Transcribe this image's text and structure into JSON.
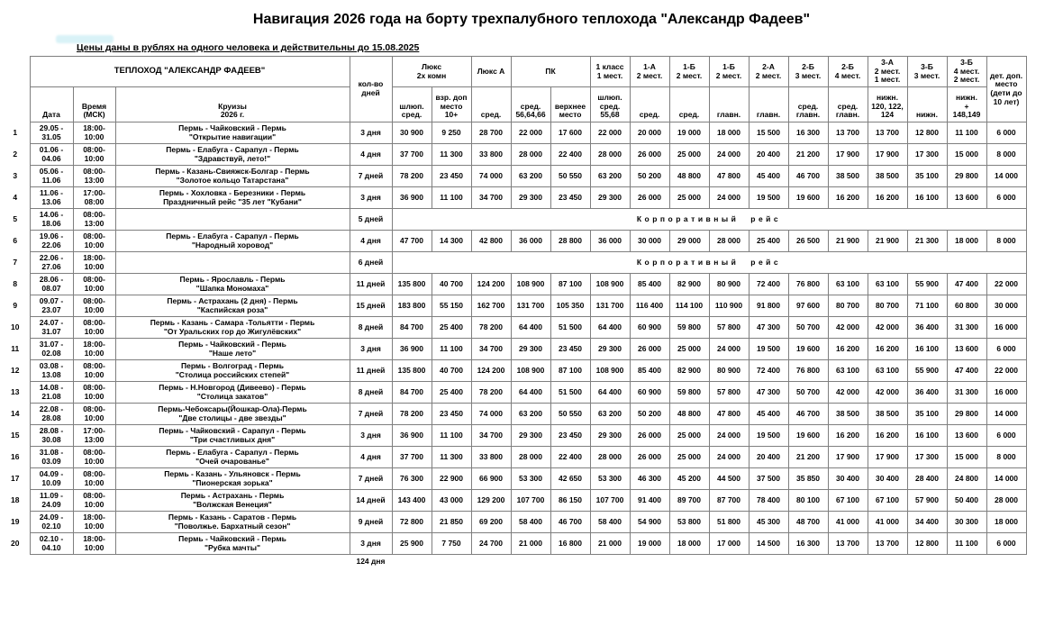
{
  "title": "Навигация 2026 года на борту трехпалубного теплохода \"Александр Фадеев\"",
  "subtitle": "Цены даны в рублях на одного человека и действительны до 15.08.2025",
  "footer_total": "124 дня",
  "table": {
    "ship_header": "ТЕПЛОХОД \"АЛЕКСАНДР ФАДЕЕВ\"",
    "col_date": "Дата",
    "col_time": "Время\n(МСК)",
    "col_cruise": "Круизы\n2026 г.",
    "col_days": "кол-во\nдней",
    "children_col_label": "дет. доп.\nместо\n(дети до\n10 лет)",
    "groups": [
      {
        "label": "Люкс\n2х комн",
        "subs": [
          "шлюп.\nсред.",
          "взр. доп\nместо\n10+"
        ]
      },
      {
        "label": "Люкс А",
        "subs": [
          "сред."
        ]
      },
      {
        "label": "ПК",
        "subs": [
          "сред.\n56,64,66",
          "верхнее\nместо"
        ]
      },
      {
        "label": "1 класс\n1 мест.",
        "subs": [
          "шлюп.\nсред.\n55,68"
        ]
      },
      {
        "label": "1-А\n2 мест.",
        "subs": [
          "сред."
        ]
      },
      {
        "label": "1-Б\n2 мест.",
        "subs": [
          "сред."
        ]
      },
      {
        "label": "1-Б\n2 мест.",
        "subs": [
          "главн."
        ]
      },
      {
        "label": "2-А\n2 мест.",
        "subs": [
          "главн."
        ]
      },
      {
        "label": "2-Б\n3 мест.",
        "subs": [
          "сред.\nглавн."
        ]
      },
      {
        "label": "2-Б\n4 мест.",
        "subs": [
          "сред.\nглавн."
        ]
      },
      {
        "label": "3-А\n2 мест.\n1 мест.",
        "subs": [
          "нижн.\n120, 122,\n124"
        ]
      },
      {
        "label": "3-Б\n3 мест.",
        "subs": [
          "нижн."
        ]
      },
      {
        "label": "3-Б\n4 мест.\n2 мест.",
        "subs": [
          "нижн.\n+\n148,149"
        ]
      }
    ],
    "corporate_label": "Корпоративный рейс",
    "rows": [
      {
        "n": "1",
        "dates": "29.05 -\n31.05",
        "time": "18:00-\n10:00",
        "cruise": "Пермь - Чайковский - Пермь\n\"Открытие навигации\"",
        "days": "3 дня",
        "prices": [
          "30 900",
          "9 250",
          "28 700",
          "22 000",
          "17 600",
          "22 000",
          "20 000",
          "19 000",
          "18 000",
          "15 500",
          "16 300",
          "13 700",
          "13 700",
          "12 800",
          "11 100",
          "6 000"
        ]
      },
      {
        "n": "2",
        "dates": "01.06 -\n04.06",
        "time": "08:00-\n10:00",
        "cruise": "Пермь - Елабуга - Сарапул - Пермь\n\"Здравствуй, лето!\"",
        "days": "4 дня",
        "prices": [
          "37 700",
          "11 300",
          "33 800",
          "28 000",
          "22 400",
          "28 000",
          "26 000",
          "25 000",
          "24 000",
          "20 400",
          "21 200",
          "17 900",
          "17 900",
          "17 300",
          "15 000",
          "8 000"
        ]
      },
      {
        "n": "3",
        "dates": "05.06 -\n11.06",
        "time": "08:00-\n13:00",
        "cruise": "Пермь - Казань-Свияжск-Болгар - Пермь\n\"Золотое кольцо Татарстана\"",
        "days": "7 дней",
        "prices": [
          "78 200",
          "23 450",
          "74 000",
          "63 200",
          "50 550",
          "63 200",
          "50 200",
          "48 800",
          "47 800",
          "45 400",
          "46 700",
          "38 500",
          "38 500",
          "35 100",
          "29 800",
          "14 000"
        ]
      },
      {
        "n": "4",
        "dates": "11.06 -\n13.06",
        "time": "17:00-\n08:00",
        "cruise": "Пермь - Хохловка - Березники - Пермь\nПраздничный рейс \"35 лет \"Кубани\"",
        "days": "3 дня",
        "prices": [
          "36 900",
          "11 100",
          "34 700",
          "29 300",
          "23 450",
          "29 300",
          "26 000",
          "25 000",
          "24 000",
          "19 500",
          "19 600",
          "16 200",
          "16 200",
          "16 100",
          "13 600",
          "6 000"
        ]
      },
      {
        "n": "5",
        "dates": "14.06 -\n18.06",
        "time": "08:00-\n13:00",
        "cruise": "",
        "days": "5 дней",
        "special": true
      },
      {
        "n": "6",
        "dates": "19.06 -\n22.06",
        "time": "08:00-\n10:00",
        "cruise": "Пермь - Елабуга - Сарапул - Пермь\n\"Народный хоровод\"",
        "days": "4 дня",
        "prices": [
          "47 700",
          "14 300",
          "42 800",
          "36 000",
          "28 800",
          "36 000",
          "30 000",
          "29 000",
          "28 000",
          "25 400",
          "26 500",
          "21 900",
          "21 900",
          "21 300",
          "18 000",
          "8 000"
        ]
      },
      {
        "n": "7",
        "dates": "22.06 -\n27.06",
        "time": "18:00-\n10:00",
        "cruise": "",
        "days": "6 дней",
        "special": true
      },
      {
        "n": "8",
        "dates": "28.06 -\n08.07",
        "time": "08:00-\n10:00",
        "cruise": "Пермь - Ярославль  - Пермь\n\"Шапка Мономаха\"",
        "days": "11 дней",
        "prices": [
          "135 800",
          "40 700",
          "124 200",
          "108 900",
          "87 100",
          "108 900",
          "85 400",
          "82 900",
          "80 900",
          "72 400",
          "76 800",
          "63 100",
          "63 100",
          "55 900",
          "47 400",
          "22 000"
        ]
      },
      {
        "n": "9",
        "dates": "09.07 -\n23.07",
        "time": "08:00-\n10:00",
        "cruise": "Пермь - Астрахань (2 дня) - Пермь\n\"Каспийская роза\"",
        "days": "15 дней",
        "prices": [
          "183 800",
          "55 150",
          "162 700",
          "131 700",
          "105 350",
          "131 700",
          "116 400",
          "114 100",
          "110 900",
          "91 800",
          "97 600",
          "80 700",
          "80 700",
          "71 100",
          "60 800",
          "30 000"
        ]
      },
      {
        "n": "10",
        "dates": "24.07 -\n31.07",
        "time": "08:00-\n10:00",
        "cruise": "Пермь - Казань - Самара -Тольятти - Пермь\n\"От Уральских гор до Жигулёвских\"",
        "days": "8 дней",
        "prices": [
          "84 700",
          "25 400",
          "78 200",
          "64 400",
          "51 500",
          "64 400",
          "60 900",
          "59 800",
          "57 800",
          "47 300",
          "50 700",
          "42 000",
          "42 000",
          "36 400",
          "31 300",
          "16 000"
        ]
      },
      {
        "n": "11",
        "dates": "31.07 -\n02.08",
        "time": "18:00-\n10:00",
        "cruise": "Пермь - Чайковский - Пермь\n\"Наше лето\"",
        "days": "3 дня",
        "prices": [
          "36 900",
          "11 100",
          "34 700",
          "29 300",
          "23 450",
          "29 300",
          "26 000",
          "25 000",
          "24 000",
          "19 500",
          "19 600",
          "16 200",
          "16 200",
          "16 100",
          "13 600",
          "6 000"
        ]
      },
      {
        "n": "12",
        "dates": "03.08 -\n13.08",
        "time": "08:00-\n10:00",
        "cruise": "Пермь - Волгоград - Пермь\n\"Столица российских степей\"",
        "days": "11 дней",
        "prices": [
          "135 800",
          "40 700",
          "124 200",
          "108 900",
          "87 100",
          "108 900",
          "85 400",
          "82 900",
          "80 900",
          "72 400",
          "76 800",
          "63 100",
          "63 100",
          "55 900",
          "47 400",
          "22 000"
        ]
      },
      {
        "n": "13",
        "dates": "14.08 -\n21.08",
        "time": "08:00-\n10:00",
        "cruise": "Пермь - Н.Новгород (Дивеево) - Пермь\n\"Столица закатов\"",
        "days": "8 дней",
        "prices": [
          "84 700",
          "25 400",
          "78 200",
          "64 400",
          "51 500",
          "64 400",
          "60 900",
          "59 800",
          "57 800",
          "47 300",
          "50 700",
          "42 000",
          "42 000",
          "36 400",
          "31 300",
          "16 000"
        ]
      },
      {
        "n": "14",
        "dates": "22.08 -\n28.08",
        "time": "08:00-\n10:00",
        "cruise": "Пермь-Чебоксары(Йошкар-Ола)-Пермь\n\"Две столицы - две звезды\"",
        "days": "7 дней",
        "prices": [
          "78 200",
          "23 450",
          "74 000",
          "63 200",
          "50 550",
          "63 200",
          "50 200",
          "48 800",
          "47 800",
          "45 400",
          "46 700",
          "38 500",
          "38 500",
          "35 100",
          "29 800",
          "14 000"
        ]
      },
      {
        "n": "15",
        "dates": "28.08 -\n30.08",
        "time": "17:00-\n13:00",
        "cruise": "Пермь - Чайковский - Сарапул - Пермь\n\"Три счастливых дня\"",
        "days": "3 дня",
        "prices": [
          "36 900",
          "11 100",
          "34 700",
          "29 300",
          "23 450",
          "29 300",
          "26 000",
          "25 000",
          "24 000",
          "19 500",
          "19 600",
          "16 200",
          "16 200",
          "16 100",
          "13 600",
          "6 000"
        ]
      },
      {
        "n": "16",
        "dates": "31.08 -\n03.09",
        "time": "08:00-\n10:00",
        "cruise": "Пермь - Елабуга - Сарапул - Пермь\n\"Очей очарованье\"",
        "days": "4 дня",
        "prices": [
          "37 700",
          "11 300",
          "33 800",
          "28 000",
          "22 400",
          "28 000",
          "26 000",
          "25 000",
          "24 000",
          "20 400",
          "21 200",
          "17 900",
          "17 900",
          "17 300",
          "15 000",
          "8 000"
        ]
      },
      {
        "n": "17",
        "dates": "04.09 -\n10.09",
        "time": "08:00-\n10:00",
        "cruise": "Пермь - Казань - Ульяновск - Пермь\n\"Пионерская зорька\"",
        "days": "7 дней",
        "prices": [
          "76 300",
          "22 900",
          "66 900",
          "53 300",
          "42 650",
          "53 300",
          "46 300",
          "45 200",
          "44 500",
          "37 500",
          "35 850",
          "30 400",
          "30 400",
          "28 400",
          "24 800",
          "14 000"
        ]
      },
      {
        "n": "18",
        "dates": "11.09 -\n24.09",
        "time": "08:00-\n10:00",
        "cruise": "Пермь - Астрахань - Пермь\n\"Волжская Венеция\"",
        "days": "14 дней",
        "prices": [
          "143 400",
          "43 000",
          "129 200",
          "107 700",
          "86 150",
          "107 700",
          "91 400",
          "89 700",
          "87 700",
          "78 400",
          "80 100",
          "67 100",
          "67 100",
          "57 900",
          "50 400",
          "28 000"
        ]
      },
      {
        "n": "19",
        "dates": "24.09 -\n02.10",
        "time": "18:00-\n10:00",
        "cruise": "Пермь - Казань - Саратов - Пермь\n\"Поволжье. Бархатный сезон\"",
        "days": "9 дней",
        "prices": [
          "72 800",
          "21 850",
          "69 200",
          "58 400",
          "46 700",
          "58 400",
          "54 900",
          "53 800",
          "51 800",
          "45 300",
          "48 700",
          "41 000",
          "41 000",
          "34 400",
          "30 300",
          "18 000"
        ]
      },
      {
        "n": "20",
        "dates": "02.10 -\n04.10",
        "time": "18:00-\n10:00",
        "cruise": "Пермь - Чайковский - Пермь\n\"Рубка мачты\"",
        "days": "3 дня",
        "prices": [
          "25 900",
          "7 750",
          "24 700",
          "21 000",
          "16 800",
          "21 000",
          "19 000",
          "18 000",
          "17 000",
          "14 500",
          "16 300",
          "13 700",
          "13 700",
          "12 800",
          "11 100",
          "6 000"
        ]
      }
    ]
  }
}
